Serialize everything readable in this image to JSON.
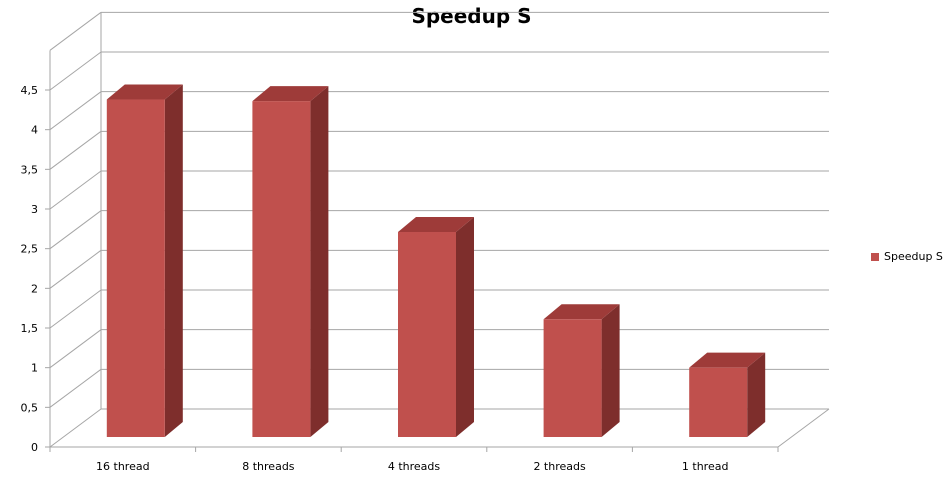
{
  "chart_data": {
    "type": "bar",
    "title": "Speedup S",
    "categories": [
      "16 thread",
      "8 threads",
      "4 threads",
      "2 threads",
      "1 thread"
    ],
    "series": [
      {
        "name": "Speedup S",
        "values": [
          4.38,
          4.36,
          2.71,
          1.61,
          1.0
        ]
      }
    ],
    "y_tick_labels": [
      "0",
      "0,5",
      "1",
      "1,5",
      "2",
      "2,5",
      "3",
      "3,5",
      "4",
      "4,5"
    ],
    "ylim": [
      0,
      4.5
    ],
    "grid": true,
    "legend_position": "right",
    "colors": {
      "front": "#c0504d",
      "top": "#9e3b39",
      "side": "#7e2e2c",
      "grid": "#a6a6a6"
    }
  }
}
